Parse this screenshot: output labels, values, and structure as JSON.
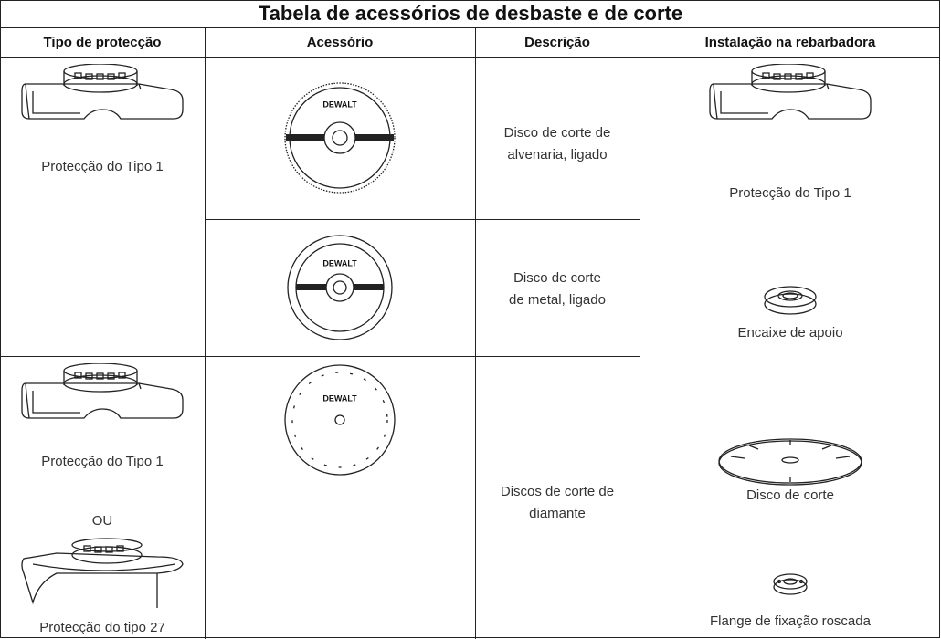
{
  "title": "Tabela de acessórios de desbaste e de corte",
  "headers": [
    "Tipo de protecção",
    "Acessório",
    "Descrição",
    "Instalação na rebarbadora"
  ],
  "logo": "DEWALT",
  "rows": [
    {
      "guard": [
        "Protecção do Tipo 1"
      ],
      "description": [
        "Disco de corte de",
        "alvenaria, ligado"
      ]
    },
    {
      "description": [
        "Disco de corte",
        "de metal, ligado"
      ]
    },
    {
      "guard": [
        "Protecção do Tipo 1",
        "OU",
        "Protecção do tipo 27"
      ],
      "description": [
        "Discos de corte de",
        "diamante"
      ]
    }
  ],
  "installation": [
    "Protecção do Tipo 1",
    "Encaixe de apoio",
    "Disco de corte",
    "Flange de fixação roscada"
  ]
}
